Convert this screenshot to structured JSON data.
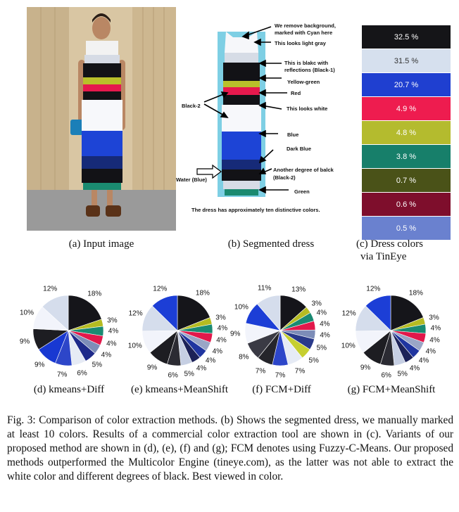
{
  "captions": {
    "a": "(a) Input image",
    "b": "(b) Segmented dress",
    "c1": "(c) Dress colors",
    "c2": "via TinEye",
    "d": "(d) kmeans+Diff",
    "e": "(e) kmeans+MeanShift",
    "f": "(f) FCM+Diff",
    "g": "(g) FCM+MeanShift"
  },
  "annotations": {
    "remove_bg_1": "We remove background,",
    "remove_bg_2": "marked with Cyan here",
    "light_gray": "This looks light gray",
    "blakc_1": "This is blakc with",
    "blakc_2": "reflections (Black-1)",
    "yellow_green": "Yellow-green",
    "red": "Red",
    "black2": "Black-2",
    "white": "This looks white",
    "blue": "Blue",
    "dark_blue": "Dark Blue",
    "another_1": "Another degree of balck",
    "another_2": "(Black-2)",
    "water": "Water (Blue)",
    "green": "Green",
    "summary": "The dress has approximately ten distinctive colors."
  },
  "tineye_swatches": [
    {
      "label": "32.5 %",
      "color": "#151518",
      "text": "#ffffff"
    },
    {
      "label": "31.5 %",
      "color": "#d6e0ee",
      "text": "#333333"
    },
    {
      "label": "20.7 %",
      "color": "#1f3fd0",
      "text": "#ffffff"
    },
    {
      "label": "4.9 %",
      "color": "#ee1c4f",
      "text": "#ffffff"
    },
    {
      "label": "4.8 %",
      "color": "#b4bb2e",
      "text": "#ffffff"
    },
    {
      "label": "3.8 %",
      "color": "#177f6a",
      "text": "#ffffff"
    },
    {
      "label": "0.7 %",
      "color": "#4a5218",
      "text": "#ffffff"
    },
    {
      "label": "0.6 %",
      "color": "#7e0e2c",
      "text": "#ffffff"
    },
    {
      "label": "0.5 %",
      "color": "#6a81cf",
      "text": "#ffffff"
    }
  ],
  "chart_data": [
    {
      "type": "pie",
      "name": "d",
      "slices": [
        {
          "label": "18%",
          "value": 18,
          "color": "#15151a"
        },
        {
          "label": "3%",
          "value": 3,
          "color": "#b5bb22"
        },
        {
          "label": "4%",
          "value": 4,
          "color": "#1a8a72"
        },
        {
          "label": "4%",
          "value": 4,
          "color": "#e1184b"
        },
        {
          "label": "4%",
          "value": 4,
          "color": "#7d8db8"
        },
        {
          "label": "5%",
          "value": 5,
          "color": "#1e2a8a"
        },
        {
          "label": "6%",
          "value": 6,
          "color": "#e6ebf5"
        },
        {
          "label": "7%",
          "value": 7,
          "color": "#2d46c9"
        },
        {
          "label": "9%",
          "value": 9,
          "color": "#1838d2"
        },
        {
          "label": "9%",
          "value": 9,
          "color": "#1d1d22"
        },
        {
          "label": "10%",
          "value": 10,
          "color": "#f2f4fb"
        },
        {
          "label": "12%",
          "value": 12,
          "color": "#d5ddec"
        }
      ]
    },
    {
      "type": "pie",
      "name": "e",
      "slices": [
        {
          "label": "18%",
          "value": 18,
          "color": "#15151a"
        },
        {
          "label": "3%",
          "value": 3,
          "color": "#b5bb22"
        },
        {
          "label": "4%",
          "value": 4,
          "color": "#1a8a72"
        },
        {
          "label": "4%",
          "value": 4,
          "color": "#e1184b"
        },
        {
          "label": "4%",
          "value": 4,
          "color": "#9aa6c6"
        },
        {
          "label": "4%",
          "value": 4,
          "color": "#2035a0"
        },
        {
          "label": "4%",
          "value": 4,
          "color": "#1c2258"
        },
        {
          "label": "5%",
          "value": 5,
          "color": "#c6cfe3"
        },
        {
          "label": "6%",
          "value": 6,
          "color": "#2b2b33"
        },
        {
          "label": "9%",
          "value": 9,
          "color": "#1d1d22"
        },
        {
          "label": "10%",
          "value": 10,
          "color": "#f2f4fb"
        },
        {
          "label": "12%",
          "value": 12,
          "color": "#d5ddec"
        },
        {
          "label": "12%",
          "value": 12,
          "color": "#1c3ed6"
        }
      ]
    },
    {
      "type": "pie",
      "name": "f",
      "slices": [
        {
          "label": "13%",
          "value": 13,
          "color": "#15151a"
        },
        {
          "label": "3%",
          "value": 3,
          "color": "#b5bb22"
        },
        {
          "label": "4%",
          "value": 4,
          "color": "#1a8a72"
        },
        {
          "label": "4%",
          "value": 4,
          "color": "#e1184b"
        },
        {
          "label": "4%",
          "value": 4,
          "color": "#7d8db8"
        },
        {
          "label": "5%",
          "value": 5,
          "color": "#2a3a8a"
        },
        {
          "label": "5%",
          "value": 5,
          "color": "#c6cf30"
        },
        {
          "label": "7%",
          "value": 7,
          "color": "#e6ebf5"
        },
        {
          "label": "7%",
          "value": 7,
          "color": "#2d46c9"
        },
        {
          "label": "7%",
          "value": 7,
          "color": "#25252b"
        },
        {
          "label": "8%",
          "value": 8,
          "color": "#3a3a44"
        },
        {
          "label": "9%",
          "value": 9,
          "color": "#f2f4fb"
        },
        {
          "label": "10%",
          "value": 10,
          "color": "#1c3ed6"
        },
        {
          "label": "11%",
          "value": 11,
          "color": "#d5ddec"
        }
      ]
    },
    {
      "type": "pie",
      "name": "g",
      "slices": [
        {
          "label": "18%",
          "value": 18,
          "color": "#15151a"
        },
        {
          "label": "3%",
          "value": 3,
          "color": "#b5bb22"
        },
        {
          "label": "4%",
          "value": 4,
          "color": "#1a8a72"
        },
        {
          "label": "4%",
          "value": 4,
          "color": "#e1184b"
        },
        {
          "label": "4%",
          "value": 4,
          "color": "#9aa6c6"
        },
        {
          "label": "4%",
          "value": 4,
          "color": "#2035a0"
        },
        {
          "label": "4%",
          "value": 4,
          "color": "#1c2258"
        },
        {
          "label": "5%",
          "value": 5,
          "color": "#c6cfe3"
        },
        {
          "label": "6%",
          "value": 6,
          "color": "#2b2b33"
        },
        {
          "label": "9%",
          "value": 9,
          "color": "#1d1d22"
        },
        {
          "label": "10%",
          "value": 10,
          "color": "#f2f4fb"
        },
        {
          "label": "12%",
          "value": 12,
          "color": "#d5ddec"
        },
        {
          "label": "12%",
          "value": 12,
          "color": "#1c3ed6"
        }
      ]
    }
  ],
  "figure_caption": "Fig. 3: Comparison of color extraction methods. (b) Shows the segmented dress, we manually marked at least 10 colors. Results of a commercial color extraction tool are shown in (c). Variants of our proposed method are shown in (d), (e), (f) and (g); FCM denotes using Fuzzy-C-Means. Our proposed methods outperformed the Multicolor Engine (tineye.com), as the latter was not able to extract the white color and different degrees of black. Best viewed in color."
}
